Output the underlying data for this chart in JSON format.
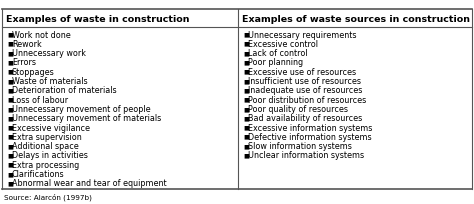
{
  "col1_header": "Examples of waste in construction",
  "col2_header": "Examples of waste sources in construction",
  "col1_items": [
    "Work not done",
    "Rework",
    "Unnecessary work",
    "Errors",
    "Stoppages",
    "Waste of materials",
    "Deterioration of materials",
    "Loss of labour",
    "Unnecessary movement of people",
    "Unnecessary movement of materials",
    "Excessive vigilance",
    "Extra supervision",
    "Additional space",
    "Delays in activities",
    "Extra processing",
    "Clarifications",
    "Abnormal wear and tear of equipment"
  ],
  "col2_items": [
    "Unnecessary requirements",
    "Excessive control",
    "Lack of control",
    "Poor planning",
    "Excessive use of resources",
    "Insufficient use of resources",
    "Inadequate use of resources",
    "Poor distribution of resources",
    "Poor quality of resources",
    "Bad availability of resources",
    "Excessive information systems",
    "Defective information systems",
    "Slow information systems",
    "Unclear information systems"
  ],
  "source_text": "Source: Alarcón (1997b)",
  "bg_color": "#ffffff",
  "header_bg": "#e8e4de",
  "border_color": "#555555",
  "text_color": "#000000",
  "bullet": "■",
  "header_fontsize": 6.8,
  "item_fontsize": 5.8,
  "source_fontsize": 5.2
}
